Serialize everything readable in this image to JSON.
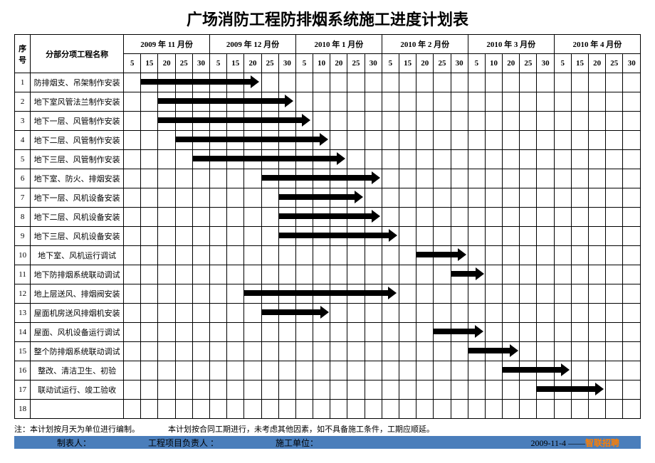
{
  "title": "广场消防工程防排烟系统施工进度计划表",
  "columns": {
    "seq": "序号",
    "name": "分部分项工程名称",
    "months": [
      {
        "label": "2009 年 11 月份",
        "days": [
          5,
          15,
          20,
          25,
          30
        ]
      },
      {
        "label": "2009 年 12 月份",
        "days": [
          5,
          15,
          20,
          25,
          30
        ]
      },
      {
        "label": "2010 年 1 月份",
        "days": [
          5,
          10,
          20,
          25,
          30
        ]
      },
      {
        "label": "2010 年 2 月份",
        "days": [
          5,
          15,
          20,
          25,
          30
        ]
      },
      {
        "label": "2010 年 3 月份",
        "days": [
          5,
          10,
          20,
          25,
          30
        ]
      },
      {
        "label": "2010 年 4 月份",
        "days": [
          5,
          15,
          20,
          25,
          30
        ]
      }
    ]
  },
  "totalCols": 30,
  "tasks": [
    {
      "n": 1,
      "name": "防排烟支、吊架制作安装",
      "start": 1,
      "span": 7
    },
    {
      "n": 2,
      "name": "地下室风管法兰制作安装",
      "start": 2,
      "span": 8
    },
    {
      "n": 3,
      "name": "地下一层、风管制作安装",
      "start": 2,
      "span": 9
    },
    {
      "n": 4,
      "name": "地下二层、风管制作安装",
      "start": 3,
      "span": 9
    },
    {
      "n": 5,
      "name": "地下三层、风管制作安装",
      "start": 4,
      "span": 9
    },
    {
      "n": 6,
      "name": "地下室、防火、排烟安装",
      "start": 8,
      "span": 7
    },
    {
      "n": 7,
      "name": "地下一层、风机设备安装",
      "start": 9,
      "span": 5
    },
    {
      "n": 8,
      "name": "地下二层、风机设备安装",
      "start": 9,
      "span": 6
    },
    {
      "n": 9,
      "name": "地下三层、风机设备安装",
      "start": 9,
      "span": 7
    },
    {
      "n": 10,
      "name": "地下室、风机运行调试",
      "start": 17,
      "span": 3
    },
    {
      "n": 11,
      "name": "地下防排烟系统联动调试",
      "start": 19,
      "span": 2
    },
    {
      "n": 12,
      "name": "地上层送风、排烟阀安装",
      "start": 7,
      "span": 9
    },
    {
      "n": 13,
      "name": "屋面机房送风排烟机安装",
      "start": 8,
      "span": 4
    },
    {
      "n": 14,
      "name": "屋面、风机设备运行调试",
      "start": 18,
      "span": 3
    },
    {
      "n": 15,
      "name": "整个防排烟系统联动调试",
      "start": 20,
      "span": 3
    },
    {
      "n": 16,
      "name": "整改、清洁卫生、初验",
      "start": 22,
      "span": 4
    },
    {
      "n": 17,
      "name": "联动试运行、竣工验收",
      "start": 24,
      "span": 4
    }
  ],
  "emptyRows": [
    18
  ],
  "notes": {
    "left": "注：本计划按月天为单位进行编制。",
    "right": "本计划按合同工期进行，未考虑其他因素，如不具备施工条件，工期应顺延。"
  },
  "footer": {
    "maker": "制表人：",
    "pm": "工程项目负责人 ：",
    "unit": "施工单位：",
    "date": "2009-11-4",
    "brand": "智联招聘"
  },
  "style": {
    "barColor": "#000000",
    "footerBg": "#4a7ebb",
    "brandColor": "#ff7f00"
  }
}
